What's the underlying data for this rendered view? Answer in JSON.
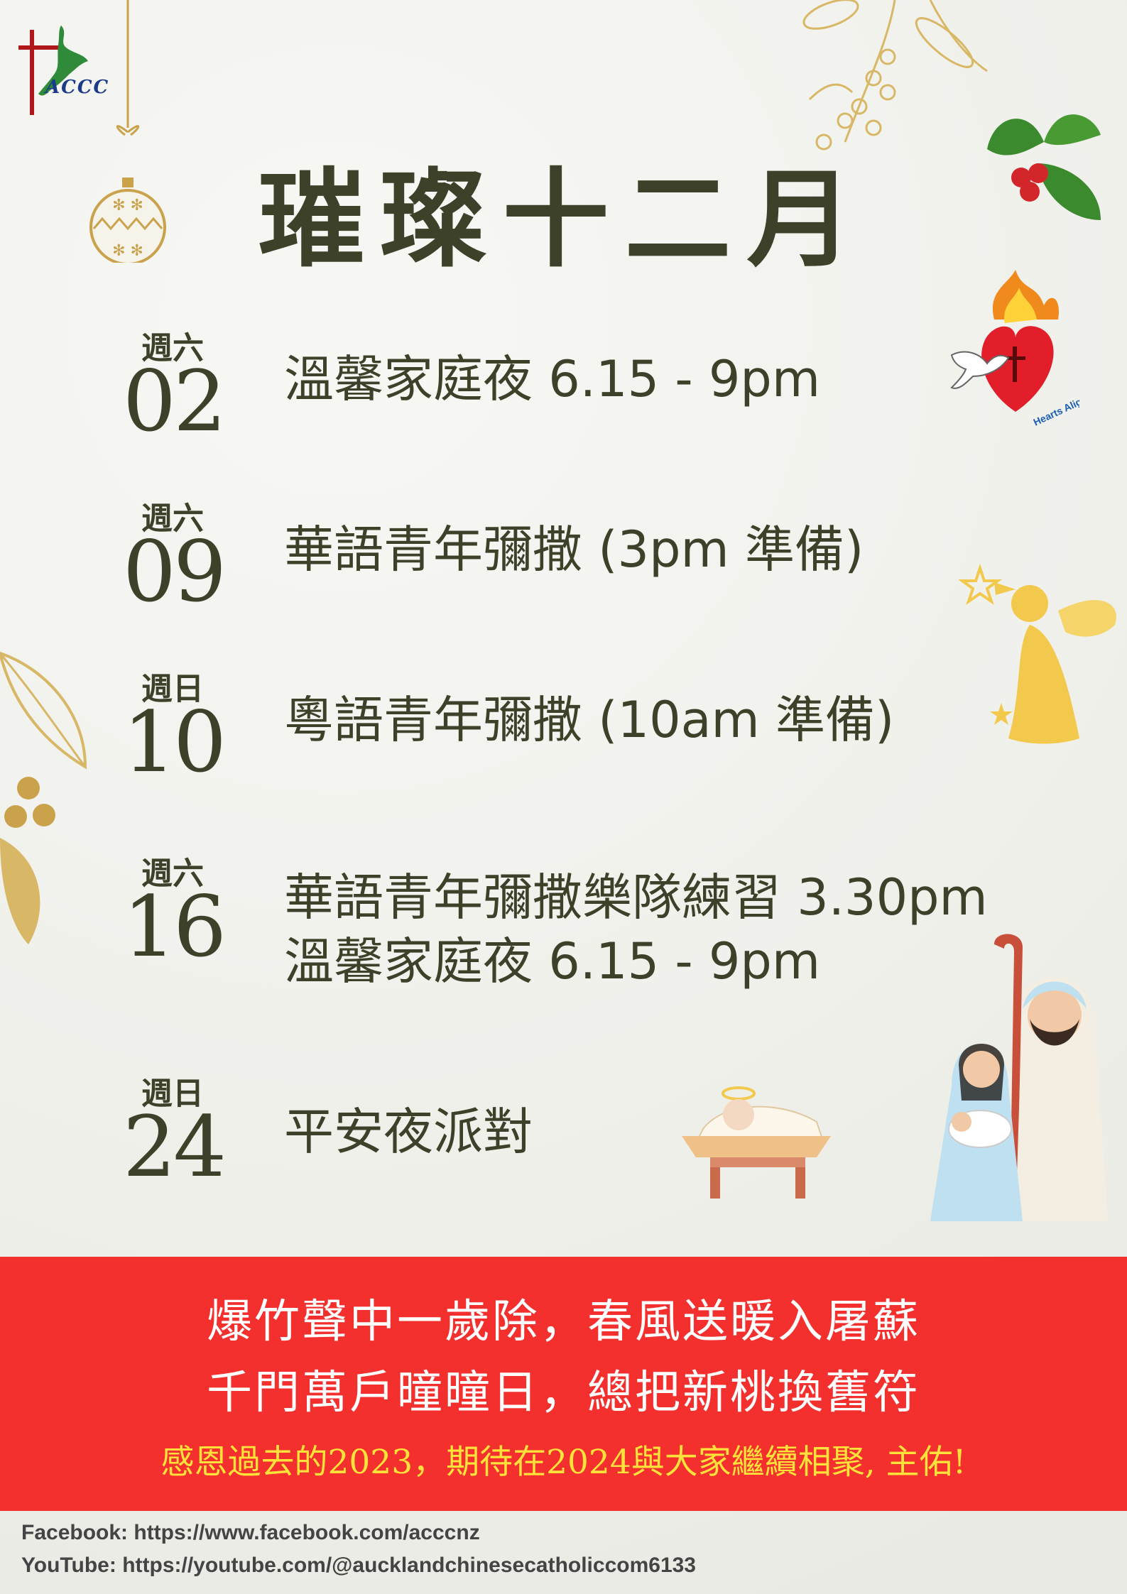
{
  "logo": {
    "text": "ACCC"
  },
  "title": "璀璨十二月",
  "events": [
    {
      "weekday": "週六",
      "day": "02",
      "lines": [
        "溫馨家庭夜 6.15 - 9pm"
      ]
    },
    {
      "weekday": "週六",
      "day": "09",
      "lines": [
        "華語青年彌撒 (3pm 準備)"
      ]
    },
    {
      "weekday": "週日",
      "day": "10",
      "lines": [
        "粵語青年彌撒 (10am 準備)"
      ]
    },
    {
      "weekday": "週六",
      "day": "16",
      "lines": [
        "華語青年彌撒樂隊練習 3.30pm",
        "溫馨家庭夜 6.15 - 9pm"
      ]
    },
    {
      "weekday": "週日",
      "day": "24",
      "lines": [
        "平安夜派對"
      ]
    }
  ],
  "badge": {
    "text": "Hearts Alight"
  },
  "banner": {
    "poem_line1": "爆竹聲中一歲除，春風送暖入屠蘇",
    "poem_line2": "千門萬戶曈曈日，總把新桃換舊符",
    "thanks": "感恩過去的2023，期待在2024與大家繼續相聚, 主佑!"
  },
  "footer": {
    "facebook": "Facebook: https://www.facebook.com/acccnz",
    "youtube": "YouTube: https://youtube.com/@aucklandchinesecatholiccom6133"
  },
  "colors": {
    "banner": "#f3302e",
    "text": "#3e4129",
    "thanks": "#ffe23a",
    "accent_gold": "#d8b866"
  }
}
